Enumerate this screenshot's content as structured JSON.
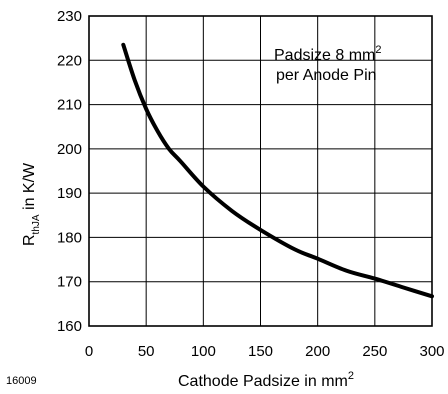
{
  "figure_number": "16009",
  "chart_data": {
    "type": "line",
    "xlabel": {
      "main": "Cathode Padsize in mm",
      "sup": "2"
    },
    "ylabel": {
      "main": "R",
      "sub": "thJA",
      "rest": " in K/W"
    },
    "xlim": [
      0,
      300
    ],
    "ylim": [
      160,
      230
    ],
    "x_ticks": [
      0,
      50,
      100,
      150,
      200,
      250,
      300
    ],
    "y_ticks": [
      160,
      170,
      180,
      190,
      200,
      210,
      220,
      230
    ],
    "grid": true,
    "annotation": {
      "line1": "Padsize 8 mm",
      "line1_sup": "2",
      "line2": "per Anode Pin"
    },
    "series": [
      {
        "color": "#000000",
        "x": [
          30,
          40,
          50,
          60,
          70,
          80,
          100,
          125,
          150,
          180,
          200,
          225,
          250,
          275,
          300
        ],
        "y": [
          223.5,
          215.5,
          209,
          204,
          200,
          197.2,
          191.5,
          186,
          181.7,
          177.3,
          175.2,
          172.5,
          170.7,
          168.7,
          166.7
        ]
      }
    ]
  }
}
